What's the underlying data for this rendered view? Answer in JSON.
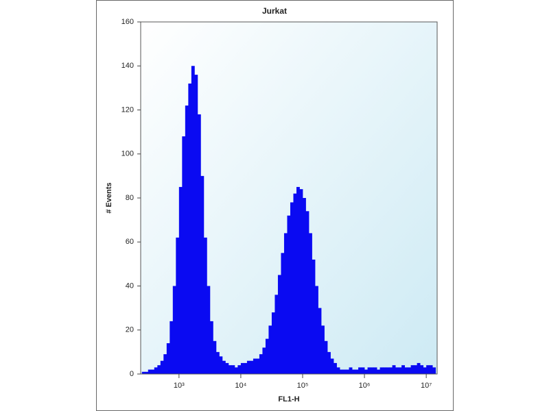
{
  "chart_data": {
    "type": "histogram",
    "title": "Jurkat",
    "x_label": "FL1-H",
    "y_label": "# Events",
    "x_log": true,
    "grid": false,
    "color": "#0a0af2",
    "xlim": [
      240,
      15000000
    ],
    "ylim": [
      0,
      160
    ],
    "xticks": [
      {
        "value": 1000,
        "label": "10³"
      },
      {
        "value": 10000,
        "label": "10⁴"
      },
      {
        "value": 100000,
        "label": "10⁵"
      },
      {
        "value": 1000000,
        "label": "10⁶"
      },
      {
        "value": 10000000,
        "label": "10⁷"
      }
    ],
    "yticks": [
      0,
      20,
      40,
      60,
      80,
      100,
      120,
      140,
      160
    ],
    "bins": [
      251,
      282,
      316,
      355,
      398,
      447,
      501,
      562,
      631,
      708,
      794,
      891,
      1000,
      1122,
      1259,
      1413,
      1585,
      1778,
      1995,
      2239,
      2512,
      2818,
      3162,
      3548,
      3981,
      4467,
      5012,
      5623,
      6310,
      7079,
      7943,
      8913,
      10000,
      11220,
      12590,
      14130,
      15850,
      17780,
      19950,
      22390,
      25120,
      28180,
      31620,
      35480,
      39810,
      44670,
      50120,
      56230,
      63100,
      70790,
      79430,
      89130,
      100000,
      112200,
      125900,
      141300,
      158500,
      177800,
      199500,
      223900,
      251200,
      281800,
      316200,
      354800,
      398100,
      446700,
      501200,
      562300,
      631000,
      707900,
      794300,
      891300,
      1000000,
      1122000,
      1259000,
      1413000,
      1585000,
      1778000,
      1995000,
      2239000,
      2512000,
      2818000,
      3162000,
      3548000,
      3981000,
      4467000,
      5012000,
      5623000,
      6310000,
      7079000,
      7943000,
      8913000,
      10000000,
      11220000,
      12590000,
      14130000
    ],
    "values": [
      1,
      1,
      2,
      2,
      3,
      4,
      6,
      9,
      14,
      24,
      40,
      62,
      85,
      108,
      122,
      132,
      140,
      136,
      118,
      90,
      62,
      40,
      24,
      15,
      10,
      8,
      6,
      5,
      4,
      4,
      3,
      4,
      5,
      5,
      6,
      6,
      7,
      7,
      9,
      12,
      16,
      22,
      28,
      36,
      45,
      55,
      64,
      72,
      78,
      82,
      85,
      84,
      80,
      74,
      64,
      52,
      40,
      30,
      22,
      15,
      10,
      7,
      5,
      3,
      2,
      2,
      2,
      3,
      2,
      2,
      3,
      3,
      2,
      3,
      3,
      3,
      2,
      3,
      3,
      3,
      3,
      4,
      3,
      3,
      4,
      3,
      3,
      4,
      4,
      5,
      4,
      3,
      4,
      4,
      3
    ]
  }
}
